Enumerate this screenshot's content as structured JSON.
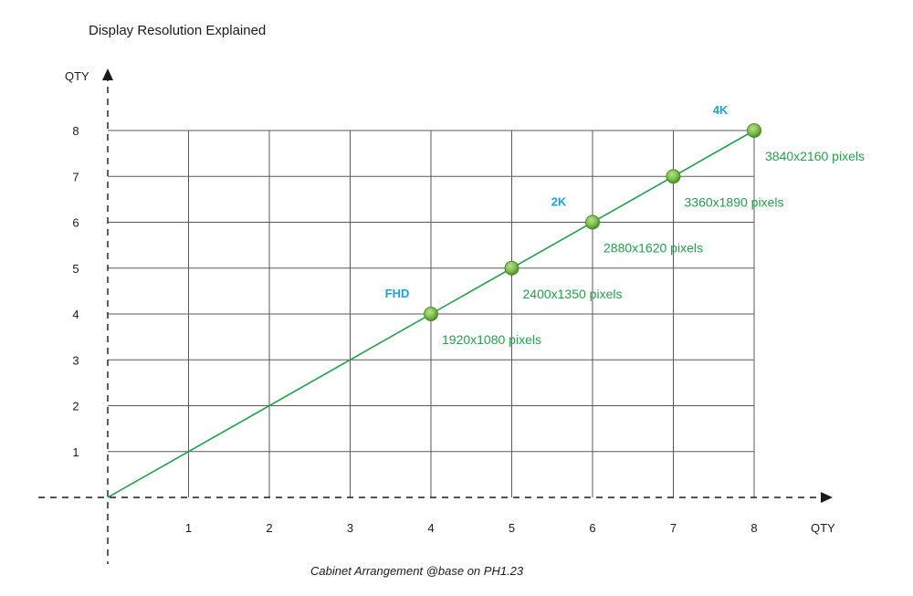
{
  "chart_data": {
    "type": "line",
    "title": "Display Resolution Explained",
    "ylabel": "QTY",
    "xlabel": "QTY",
    "caption": "Cabinet Arrangement @base on PH1.23",
    "x_ticks": [
      "1",
      "2",
      "3",
      "4",
      "5",
      "6",
      "7",
      "8"
    ],
    "y_ticks": [
      "1",
      "2",
      "3",
      "4",
      "5",
      "6",
      "7",
      "8"
    ],
    "xlim": [
      0,
      8
    ],
    "ylim": [
      0,
      8
    ],
    "grid": true,
    "line": {
      "x": [
        0,
        8
      ],
      "y": [
        0,
        8
      ]
    },
    "points": [
      {
        "x": 4,
        "y": 4,
        "label": "1920x1080 pixels",
        "tier": "FHD"
      },
      {
        "x": 5,
        "y": 5,
        "label": "2400x1350 pixels",
        "tier": ""
      },
      {
        "x": 6,
        "y": 6,
        "label": "2880x1620 pixels",
        "tier": "2K"
      },
      {
        "x": 7,
        "y": 7,
        "label": "3360x1890 pixels",
        "tier": ""
      },
      {
        "x": 8,
        "y": 8,
        "label": "3840x2160 pixels",
        "tier": "4K"
      }
    ],
    "colors": {
      "line": "#22a04b",
      "point": "#7cbf4a",
      "point_edge": "#4c8a2a",
      "label": "#22a04b",
      "tier": "#1aa3d9",
      "grid": "#5a5a5a"
    }
  }
}
